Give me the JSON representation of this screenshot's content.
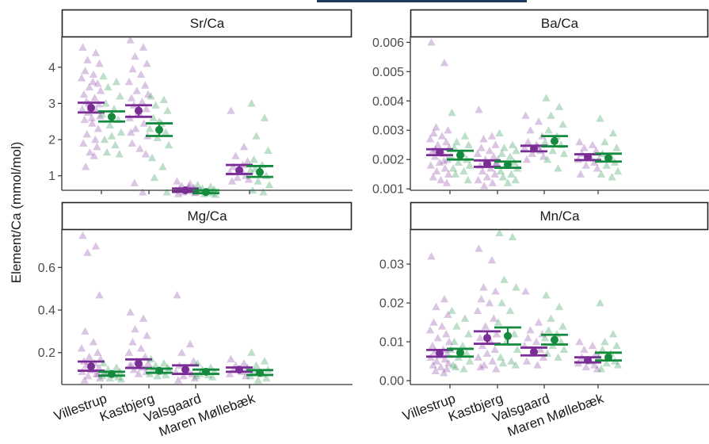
{
  "colors": {
    "purple": "#7b2d96",
    "green": "#138a3e",
    "top_bar": "#1f3a5f",
    "axis": "#333333",
    "strip_border": "#222222"
  },
  "chart_data": {
    "type": "scatter",
    "ylabel": "Element/Ca (mmol/mol)",
    "categories": [
      "Villestrup",
      "Kastbjerg",
      "Valsgaard",
      "Maren Møllebæk"
    ],
    "series_colors": [
      "purple",
      "green"
    ],
    "panels": [
      {
        "title": "Sr/Ca",
        "ylim": [
          0.6,
          4.85
        ],
        "yticks": [
          1,
          2,
          3,
          4
        ],
        "ytick_labels": [
          "1",
          "2",
          "3",
          "4"
        ],
        "groups": [
          {
            "category": "Villestrup",
            "series": 0,
            "mean": 2.88,
            "ci": [
              2.75,
              3.02
            ],
            "points": [
              4.55,
              4.4,
              4.2,
              4.1,
              3.9,
              3.8,
              3.7,
              3.55,
              3.45,
              3.35,
              3.25,
              3.15,
              3.05,
              2.98,
              2.92,
              2.85,
              2.8,
              2.75,
              2.65,
              2.55,
              2.45,
              2.3,
              2.15,
              2.0,
              1.9,
              1.8,
              1.65,
              1.55,
              1.25,
              3.6,
              3.0,
              2.6
            ]
          },
          {
            "category": "Villestrup",
            "series": 1,
            "mean": 2.63,
            "ci": [
              2.5,
              2.78
            ],
            "points": [
              3.75,
              3.6,
              3.45,
              3.2,
              3.0,
              2.85,
              2.7,
              2.55,
              2.4,
              2.2,
              2.0,
              1.85,
              1.65,
              1.6,
              2.1
            ]
          },
          {
            "category": "Kastbjerg",
            "series": 0,
            "mean": 2.8,
            "ci": [
              2.63,
              2.95
            ],
            "points": [
              4.75,
              4.55,
              4.3,
              4.1,
              3.95,
              3.8,
              3.6,
              3.5,
              3.35,
              3.25,
              3.15,
              3.05,
              2.95,
              2.85,
              2.75,
              2.6,
              2.45,
              2.3,
              2.1,
              1.9,
              1.75,
              1.6,
              0.8,
              0.55,
              2.2
            ]
          },
          {
            "category": "Kastbjerg",
            "series": 1,
            "mean": 2.27,
            "ci": [
              2.1,
              2.45
            ],
            "points": [
              3.2,
              3.1,
              2.95,
              2.8,
              2.6,
              2.45,
              2.3,
              2.2,
              2.05,
              1.85,
              1.5,
              1.25,
              0.95,
              0.55,
              2.5
            ]
          },
          {
            "category": "Valsgaard",
            "series": 0,
            "mean": 0.6,
            "ci": [
              0.56,
              0.65
            ],
            "points": [
              0.85,
              0.78,
              0.72,
              0.68,
              0.65,
              0.62,
              0.6,
              0.58,
              0.55,
              0.53,
              0.5,
              0.7
            ]
          },
          {
            "category": "Valsgaard",
            "series": 1,
            "mean": 0.55,
            "ci": [
              0.52,
              0.6
            ],
            "points": [
              0.75,
              0.7,
              0.65,
              0.62,
              0.6,
              0.57,
              0.55,
              0.52,
              0.5,
              0.48
            ]
          },
          {
            "category": "Maren Møllebæk",
            "series": 0,
            "mean": 1.15,
            "ci": [
              1.05,
              1.3
            ],
            "points": [
              2.8,
              1.8,
              1.55,
              1.4,
              1.25,
              1.15,
              1.1,
              1.0,
              0.95,
              0.9,
              0.85,
              1.3
            ]
          },
          {
            "category": "Maren Møllebæk",
            "series": 1,
            "mean": 1.1,
            "ci": [
              0.97,
              1.27
            ],
            "points": [
              3.0,
              2.6,
              2.1,
              1.7,
              1.45,
              1.3,
              1.15,
              1.0,
              0.85,
              0.75,
              0.6,
              0.55,
              1.2
            ]
          }
        ]
      },
      {
        "title": "Ba/Ca",
        "ylim": [
          0.00095,
          0.0062
        ],
        "yticks": [
          0.001,
          0.002,
          0.003,
          0.004,
          0.005,
          0.006
        ],
        "ytick_labels": [
          "0.001",
          "0.002",
          "0.003",
          "0.004",
          "0.005",
          "0.006"
        ],
        "groups": [
          {
            "category": "Villestrup",
            "series": 0,
            "mean": 0.00225,
            "ci": [
              0.00215,
              0.00235
            ],
            "points": [
              0.006,
              0.0053,
              0.0031,
              0.003,
              0.0029,
              0.0028,
              0.0027,
              0.0026,
              0.0025,
              0.0024,
              0.0023,
              0.0022,
              0.0021,
              0.002,
              0.0019,
              0.0018,
              0.0017,
              0.0016,
              0.0015,
              0.0014,
              0.0013,
              0.0012,
              0.00235,
              0.00195
            ]
          },
          {
            "category": "Villestrup",
            "series": 1,
            "mean": 0.00215,
            "ci": [
              0.002,
              0.0023
            ],
            "points": [
              0.0036,
              0.0028,
              0.0026,
              0.0025,
              0.0024,
              0.0022,
              0.0021,
              0.002,
              0.0019,
              0.0018,
              0.0017,
              0.0016,
              0.0015,
              0.0013
            ]
          },
          {
            "category": "Kastbjerg",
            "series": 0,
            "mean": 0.00185,
            "ci": [
              0.00175,
              0.00197
            ],
            "points": [
              0.0037,
              0.0028,
              0.0027,
              0.0025,
              0.0024,
              0.0023,
              0.0022,
              0.0021,
              0.002,
              0.0019,
              0.0018,
              0.0017,
              0.0016,
              0.0015,
              0.0014,
              0.0013,
              0.0012,
              0.0011,
              0.00185
            ]
          },
          {
            "category": "Kastbjerg",
            "series": 1,
            "mean": 0.00183,
            "ci": [
              0.00172,
              0.00193
            ],
            "points": [
              0.0029,
              0.0025,
              0.0024,
              0.0023,
              0.0022,
              0.0021,
              0.002,
              0.0019,
              0.0018,
              0.0017,
              0.0016,
              0.0015,
              0.0014,
              0.0013,
              0.0012
            ]
          },
          {
            "category": "Valsgaard",
            "series": 0,
            "mean": 0.00237,
            "ci": [
              0.00228,
              0.00247
            ],
            "points": [
              0.0035,
              0.0033,
              0.003,
              0.0028,
              0.0026,
              0.0025,
              0.0024,
              0.0023,
              0.0022,
              0.0021,
              0.002,
              0.00245
            ]
          },
          {
            "category": "Valsgaard",
            "series": 1,
            "mean": 0.00263,
            "ci": [
              0.00245,
              0.0028
            ],
            "points": [
              0.0041,
              0.0038,
              0.0035,
              0.0032,
              0.003,
              0.0028,
              0.0026,
              0.0025,
              0.0023,
              0.0022,
              0.002,
              0.0017
            ]
          },
          {
            "category": "Maren Møllebæk",
            "series": 0,
            "mean": 0.00208,
            "ci": [
              0.00198,
              0.00218
            ],
            "points": [
              0.0026,
              0.0025,
              0.0024,
              0.0023,
              0.0022,
              0.0021,
              0.002,
              0.0019,
              0.0018,
              0.0017,
              0.0015
            ]
          },
          {
            "category": "Maren Møllebæk",
            "series": 1,
            "mean": 0.00205,
            "ci": [
              0.00193,
              0.0022
            ],
            "points": [
              0.0034,
              0.0029,
              0.0026,
              0.0024,
              0.0022,
              0.0021,
              0.002,
              0.0019,
              0.0018,
              0.0016,
              0.0015,
              0.0014
            ]
          }
        ]
      },
      {
        "title": "Mg/Ca",
        "ylim": [
          0.05,
          0.78
        ],
        "yticks": [
          0.2,
          0.4,
          0.6
        ],
        "ytick_labels": [
          "0.2",
          "0.4",
          "0.6"
        ],
        "groups": [
          {
            "category": "Villestrup",
            "series": 0,
            "mean": 0.135,
            "ci": [
              0.115,
              0.158
            ],
            "points": [
              0.75,
              0.7,
              0.67,
              0.47,
              0.3,
              0.25,
              0.22,
              0.2,
              0.18,
              0.17,
              0.16,
              0.15,
              0.14,
              0.13,
              0.12,
              0.11,
              0.1,
              0.09,
              0.08,
              0.07,
              0.12,
              0.1
            ]
          },
          {
            "category": "Villestrup",
            "series": 1,
            "mean": 0.1,
            "ci": [
              0.092,
              0.11
            ],
            "points": [
              0.15,
              0.13,
              0.12,
              0.11,
              0.1,
              0.095,
              0.09,
              0.085,
              0.08,
              0.075,
              0.105
            ]
          },
          {
            "category": "Kastbjerg",
            "series": 0,
            "mean": 0.148,
            "ci": [
              0.128,
              0.168
            ],
            "points": [
              0.39,
              0.36,
              0.31,
              0.28,
              0.25,
              0.22,
              0.2,
              0.18,
              0.16,
              0.15,
              0.14,
              0.13,
              0.12,
              0.11,
              0.1,
              0.14
            ]
          },
          {
            "category": "Kastbjerg",
            "series": 1,
            "mean": 0.115,
            "ci": [
              0.105,
              0.125
            ],
            "points": [
              0.17,
              0.15,
              0.14,
              0.13,
              0.12,
              0.11,
              0.1,
              0.095,
              0.09,
              0.12
            ]
          },
          {
            "category": "Valsgaard",
            "series": 0,
            "mean": 0.12,
            "ci": [
              0.1,
              0.14
            ],
            "points": [
              0.47,
              0.24,
              0.2,
              0.16,
              0.14,
              0.12,
              0.11,
              0.1,
              0.09,
              0.08,
              0.07
            ]
          },
          {
            "category": "Valsgaard",
            "series": 1,
            "mean": 0.11,
            "ci": [
              0.1,
              0.12
            ],
            "points": [
              0.15,
              0.13,
              0.12,
              0.11,
              0.1,
              0.095,
              0.09,
              0.085
            ]
          },
          {
            "category": "Maren Møllebæk",
            "series": 0,
            "mean": 0.12,
            "ci": [
              0.11,
              0.13
            ],
            "points": [
              0.17,
              0.15,
              0.14,
              0.13,
              0.12,
              0.11,
              0.1,
              0.09
            ]
          },
          {
            "category": "Maren Møllebæk",
            "series": 1,
            "mean": 0.105,
            "ci": [
              0.095,
              0.118
            ],
            "points": [
              0.2,
              0.16,
              0.14,
              0.12,
              0.11,
              0.1,
              0.09,
              0.08,
              0.07
            ]
          }
        ]
      },
      {
        "title": "Mn/Ca",
        "ylim": [
          -0.001,
          0.039
        ],
        "yticks": [
          0.0,
          0.01,
          0.02,
          0.03
        ],
        "ytick_labels": [
          "0.00",
          "0.01",
          "0.02",
          "0.03"
        ],
        "groups": [
          {
            "category": "Villestrup",
            "series": 0,
            "mean": 0.007,
            "ci": [
              0.0062,
              0.0079
            ],
            "points": [
              0.032,
              0.021,
              0.019,
              0.017,
              0.015,
              0.014,
              0.013,
              0.012,
              0.011,
              0.01,
              0.009,
              0.008,
              0.0075,
              0.007,
              0.0065,
              0.006,
              0.0055,
              0.005,
              0.0045,
              0.004,
              0.0035,
              0.003,
              0.0025,
              0.002
            ]
          },
          {
            "category": "Villestrup",
            "series": 1,
            "mean": 0.0072,
            "ci": [
              0.0062,
              0.0082
            ],
            "points": [
              0.018,
              0.016,
              0.014,
              0.012,
              0.01,
              0.009,
              0.008,
              0.007,
              0.006,
              0.005,
              0.004,
              0.003,
              0.0035
            ]
          },
          {
            "category": "Kastbjerg",
            "series": 0,
            "mean": 0.011,
            "ci": [
              0.0095,
              0.0127
            ],
            "points": [
              0.034,
              0.031,
              0.024,
              0.023,
              0.021,
              0.02,
              0.018,
              0.016,
              0.014,
              0.012,
              0.011,
              0.01,
              0.009,
              0.008,
              0.007,
              0.006,
              0.005,
              0.004,
              0.003,
              0.0035
            ]
          },
          {
            "category": "Kastbjerg",
            "series": 1,
            "mean": 0.0115,
            "ci": [
              0.0093,
              0.0137
            ],
            "points": [
              0.038,
              0.037,
              0.026,
              0.024,
              0.02,
              0.018,
              0.015,
              0.012,
              0.01,
              0.008,
              0.006,
              0.005,
              0.0045,
              0.004
            ]
          },
          {
            "category": "Valsgaard",
            "series": 0,
            "mean": 0.0074,
            "ci": [
              0.0065,
              0.0085
            ],
            "points": [
              0.023,
              0.015,
              0.013,
              0.012,
              0.011,
              0.01,
              0.009,
              0.008,
              0.007,
              0.006,
              0.005,
              0.004
            ]
          },
          {
            "category": "Valsgaard",
            "series": 1,
            "mean": 0.0105,
            "ci": [
              0.0093,
              0.0118
            ],
            "points": [
              0.022,
              0.019,
              0.016,
              0.014,
              0.013,
              0.012,
              0.011,
              0.01,
              0.009,
              0.008,
              0.007,
              0.006
            ]
          },
          {
            "category": "Maren Møllebæk",
            "series": 0,
            "mean": 0.0053,
            "ci": [
              0.0047,
              0.006
            ],
            "points": [
              0.01,
              0.009,
              0.008,
              0.007,
              0.006,
              0.005,
              0.0045,
              0.004,
              0.0035,
              0.003
            ]
          },
          {
            "category": "Maren Møllebæk",
            "series": 1,
            "mean": 0.006,
            "ci": [
              0.0052,
              0.0072
            ],
            "points": [
              0.02,
              0.012,
              0.01,
              0.009,
              0.008,
              0.007,
              0.006,
              0.005,
              0.0045,
              0.004,
              0.003
            ]
          }
        ]
      }
    ]
  }
}
